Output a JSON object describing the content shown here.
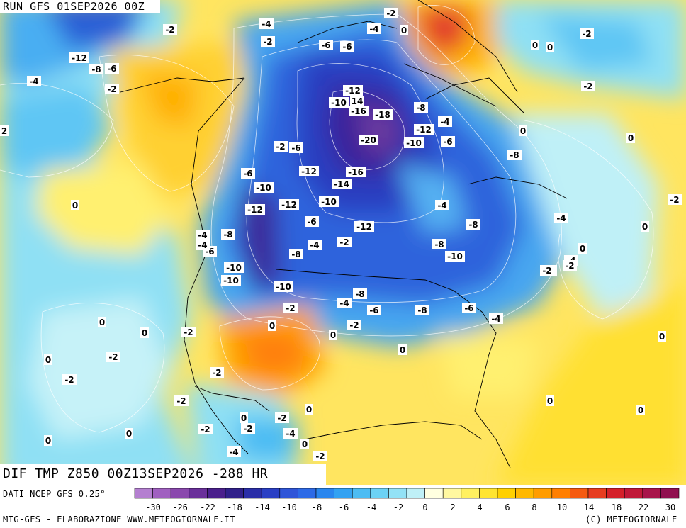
{
  "run_label": "RUN GFS 01SEP2026 00Z",
  "title": "DIF TMP Z850 00Z13SEP2026 -288 HR",
  "data_source": "DATI NCEP GFS 0.25°",
  "producer": "MTG-GFS - ELABORAZIONE WWW.METEOGIORNALE.IT",
  "copyright": "(C) METEOGIORNALE",
  "legend": {
    "colors": [
      "#b47fd0",
      "#a060c0",
      "#8a48ad",
      "#6a2f9a",
      "#4a1f8c",
      "#30208a",
      "#2a2ea8",
      "#2a3fc4",
      "#2f55d8",
      "#2d6ae6",
      "#2a86ee",
      "#33a2f2",
      "#4cbcf3",
      "#6cd2f5",
      "#93e2f6",
      "#bff0f7",
      "#ffffe0",
      "#fff8a0",
      "#fff060",
      "#ffe430",
      "#ffd000",
      "#ffb800",
      "#ff9c00",
      "#ff7f00",
      "#f55a10",
      "#e63c20",
      "#d4202a",
      "#c01838",
      "#a8144a",
      "#901050"
    ],
    "tick_labels": [
      "-30",
      "-26",
      "-22",
      "-18",
      "-14",
      "-10",
      "-8",
      "-6",
      "-4",
      "-2",
      "0",
      "2",
      "4",
      "6",
      "8",
      "10",
      "14",
      "18",
      "22",
      "30"
    ]
  },
  "isotherm_labels": [
    {
      "t": "-2"
    },
    {
      "t": "-4"
    },
    {
      "t": "-2"
    },
    {
      "t": "0"
    },
    {
      "t": "-4"
    },
    {
      "t": "-2"
    },
    {
      "t": "-6"
    },
    {
      "t": "-6"
    },
    {
      "t": "0"
    },
    {
      "t": "0"
    },
    {
      "t": "-2"
    },
    {
      "t": "-12"
    },
    {
      "t": "-4"
    },
    {
      "t": "-8"
    },
    {
      "t": "-6"
    },
    {
      "t": "-2"
    },
    {
      "t": "-12"
    },
    {
      "t": "-10"
    },
    {
      "t": "14"
    },
    {
      "t": "-16"
    },
    {
      "t": "-18"
    },
    {
      "t": "-8"
    },
    {
      "t": "-4"
    },
    {
      "t": "-12"
    },
    {
      "t": "-20"
    },
    {
      "t": "-10"
    },
    {
      "t": "-6"
    },
    {
      "t": "-2"
    },
    {
      "t": "-6"
    },
    {
      "t": "-8"
    },
    {
      "t": "-12"
    },
    {
      "t": "-16"
    },
    {
      "t": "-14"
    },
    {
      "t": "-6"
    },
    {
      "t": "-10"
    },
    {
      "t": "-12"
    },
    {
      "t": "-12"
    },
    {
      "t": "-10"
    },
    {
      "t": "-4"
    },
    {
      "t": "-8"
    },
    {
      "t": "-6"
    },
    {
      "t": "-12"
    },
    {
      "t": "-8"
    },
    {
      "t": "-6"
    },
    {
      "t": "-8"
    },
    {
      "t": "-10"
    },
    {
      "t": "-10"
    },
    {
      "t": "-8"
    },
    {
      "t": "-4"
    },
    {
      "t": "-4"
    },
    {
      "t": "-2"
    },
    {
      "t": "-4"
    },
    {
      "t": "-10"
    },
    {
      "t": "-8"
    },
    {
      "t": "-10"
    },
    {
      "t": "-6"
    },
    {
      "t": "-6"
    },
    {
      "t": "-8"
    },
    {
      "t": "-4"
    },
    {
      "t": "-2"
    },
    {
      "t": "-2"
    },
    {
      "t": "-4"
    },
    {
      "t": "-2"
    },
    {
      "t": "-2"
    },
    {
      "t": "-6"
    },
    {
      "t": "-4"
    },
    {
      "t": "-2"
    },
    {
      "t": "-4"
    },
    {
      "t": "0"
    },
    {
      "t": "-2"
    },
    {
      "t": "0"
    },
    {
      "t": "0"
    },
    {
      "t": "0"
    },
    {
      "t": "0"
    },
    {
      "t": "0"
    },
    {
      "t": "0"
    },
    {
      "t": "0"
    },
    {
      "t": "-2"
    },
    {
      "t": "-2"
    },
    {
      "t": "-2"
    },
    {
      "t": "-2"
    },
    {
      "t": "0"
    },
    {
      "t": "-2"
    },
    {
      "t": "-4"
    },
    {
      "t": "0"
    },
    {
      "t": "-2"
    },
    {
      "t": "-2"
    },
    {
      "t": "-4"
    },
    {
      "t": "0"
    },
    {
      "t": "0"
    },
    {
      "t": "0"
    },
    {
      "t": "0"
    },
    {
      "t": "0"
    },
    {
      "t": "0"
    },
    {
      "t": "0"
    },
    {
      "t": "0"
    },
    {
      "t": "0"
    },
    {
      "t": "-2"
    },
    {
      "t": "-2"
    },
    {
      "t": "2"
    }
  ]
}
